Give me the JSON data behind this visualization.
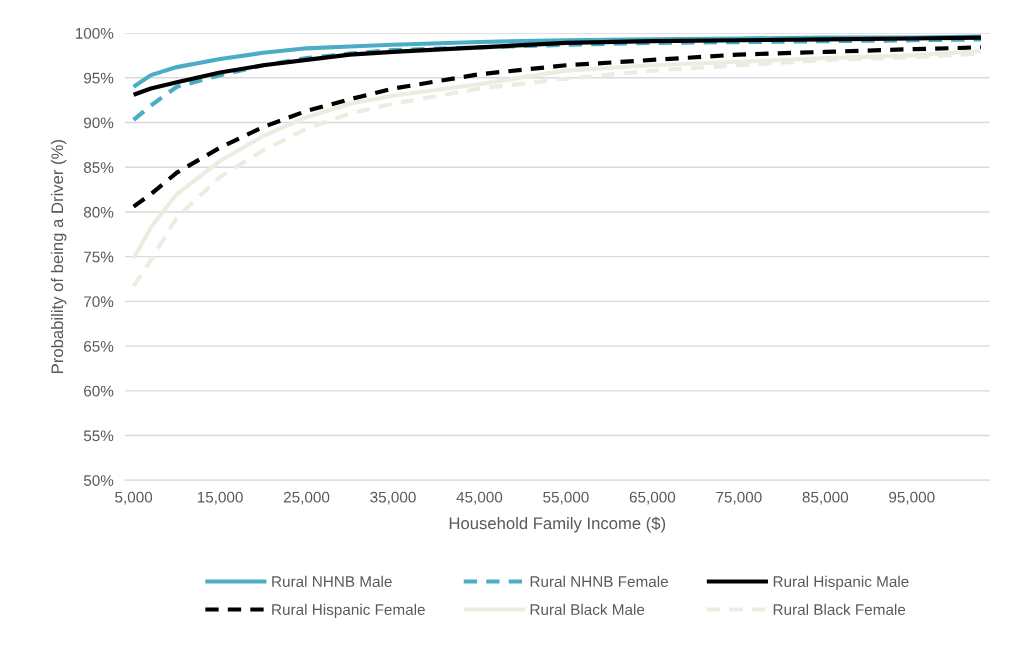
{
  "chart_data": {
    "type": "line",
    "xlabel": "Household Family Income ($)",
    "ylabel": "Probability of being a Driver (%)",
    "x": [
      5000,
      7000,
      10000,
      15000,
      20000,
      25000,
      30000,
      35000,
      45000,
      55000,
      65000,
      75000,
      85000,
      95000,
      103000
    ],
    "series": [
      {
        "name": "Rural NHNB Male",
        "color": "#4bacc6",
        "line_style": "solid",
        "values": [
          94.0,
          95.3,
          96.2,
          97.1,
          97.8,
          98.3,
          98.5,
          98.7,
          99.0,
          99.2,
          99.3,
          99.4,
          99.5,
          99.5,
          99.6
        ]
      },
      {
        "name": "Rural NHNB Female",
        "color": "#4bacc6",
        "line_style": "dashed",
        "values": [
          90.3,
          91.9,
          94.0,
          95.3,
          96.4,
          97.2,
          97.7,
          98.1,
          98.4,
          98.7,
          98.9,
          99.0,
          99.1,
          99.2,
          99.3
        ]
      },
      {
        "name": "Rural Hispanic Male",
        "color": "#000000",
        "line_style": "solid",
        "values": [
          93.1,
          93.8,
          94.5,
          95.6,
          96.4,
          97.0,
          97.6,
          97.9,
          98.4,
          98.9,
          99.1,
          99.2,
          99.3,
          99.4,
          99.5
        ]
      },
      {
        "name": "Rural Hispanic Female",
        "color": "#000000",
        "line_style": "dashed",
        "values": [
          80.6,
          82.0,
          84.4,
          87.2,
          89.5,
          91.3,
          92.6,
          93.8,
          95.4,
          96.4,
          97.0,
          97.6,
          97.9,
          98.2,
          98.4
        ]
      },
      {
        "name": "Rural Black Male",
        "color": "#eeece1",
        "line_style": "solid",
        "values": [
          74.8,
          78.3,
          82.0,
          85.7,
          88.5,
          90.6,
          92.1,
          93.0,
          94.3,
          95.8,
          96.4,
          96.8,
          97.2,
          97.5,
          98.0
        ]
      },
      {
        "name": "Rural Black Female",
        "color": "#eeece1",
        "line_style": "dashed",
        "values": [
          71.7,
          74.6,
          79.4,
          83.9,
          86.9,
          89.3,
          91.0,
          92.1,
          93.8,
          94.9,
          95.8,
          96.4,
          97.0,
          97.3,
          97.7
        ]
      }
    ],
    "xlim": [
      4000,
      104000
    ],
    "xticks": [
      {
        "value": 5000,
        "label": "5,000"
      },
      {
        "value": 15000,
        "label": "15,000"
      },
      {
        "value": 25000,
        "label": "25,000"
      },
      {
        "value": 35000,
        "label": "35,000"
      },
      {
        "value": 45000,
        "label": "45,000"
      },
      {
        "value": 55000,
        "label": "55,000"
      },
      {
        "value": 65000,
        "label": "65,000"
      },
      {
        "value": 75000,
        "label": "75,000"
      },
      {
        "value": 85000,
        "label": "85,000"
      },
      {
        "value": 95000,
        "label": "95,000"
      }
    ],
    "ylim": [
      50,
      100
    ],
    "yticks": [
      {
        "value": 50,
        "label": "50%"
      },
      {
        "value": 55,
        "label": "55%"
      },
      {
        "value": 60,
        "label": "60%"
      },
      {
        "value": 65,
        "label": "65%"
      },
      {
        "value": 70,
        "label": "70%"
      },
      {
        "value": 75,
        "label": "75%"
      },
      {
        "value": 80,
        "label": "80%"
      },
      {
        "value": 85,
        "label": "85%"
      },
      {
        "value": 90,
        "label": "90%"
      },
      {
        "value": 95,
        "label": "95%"
      },
      {
        "value": 100,
        "label": "100%"
      }
    ],
    "grid": "y",
    "legend": "bottom",
    "marker": "none"
  }
}
